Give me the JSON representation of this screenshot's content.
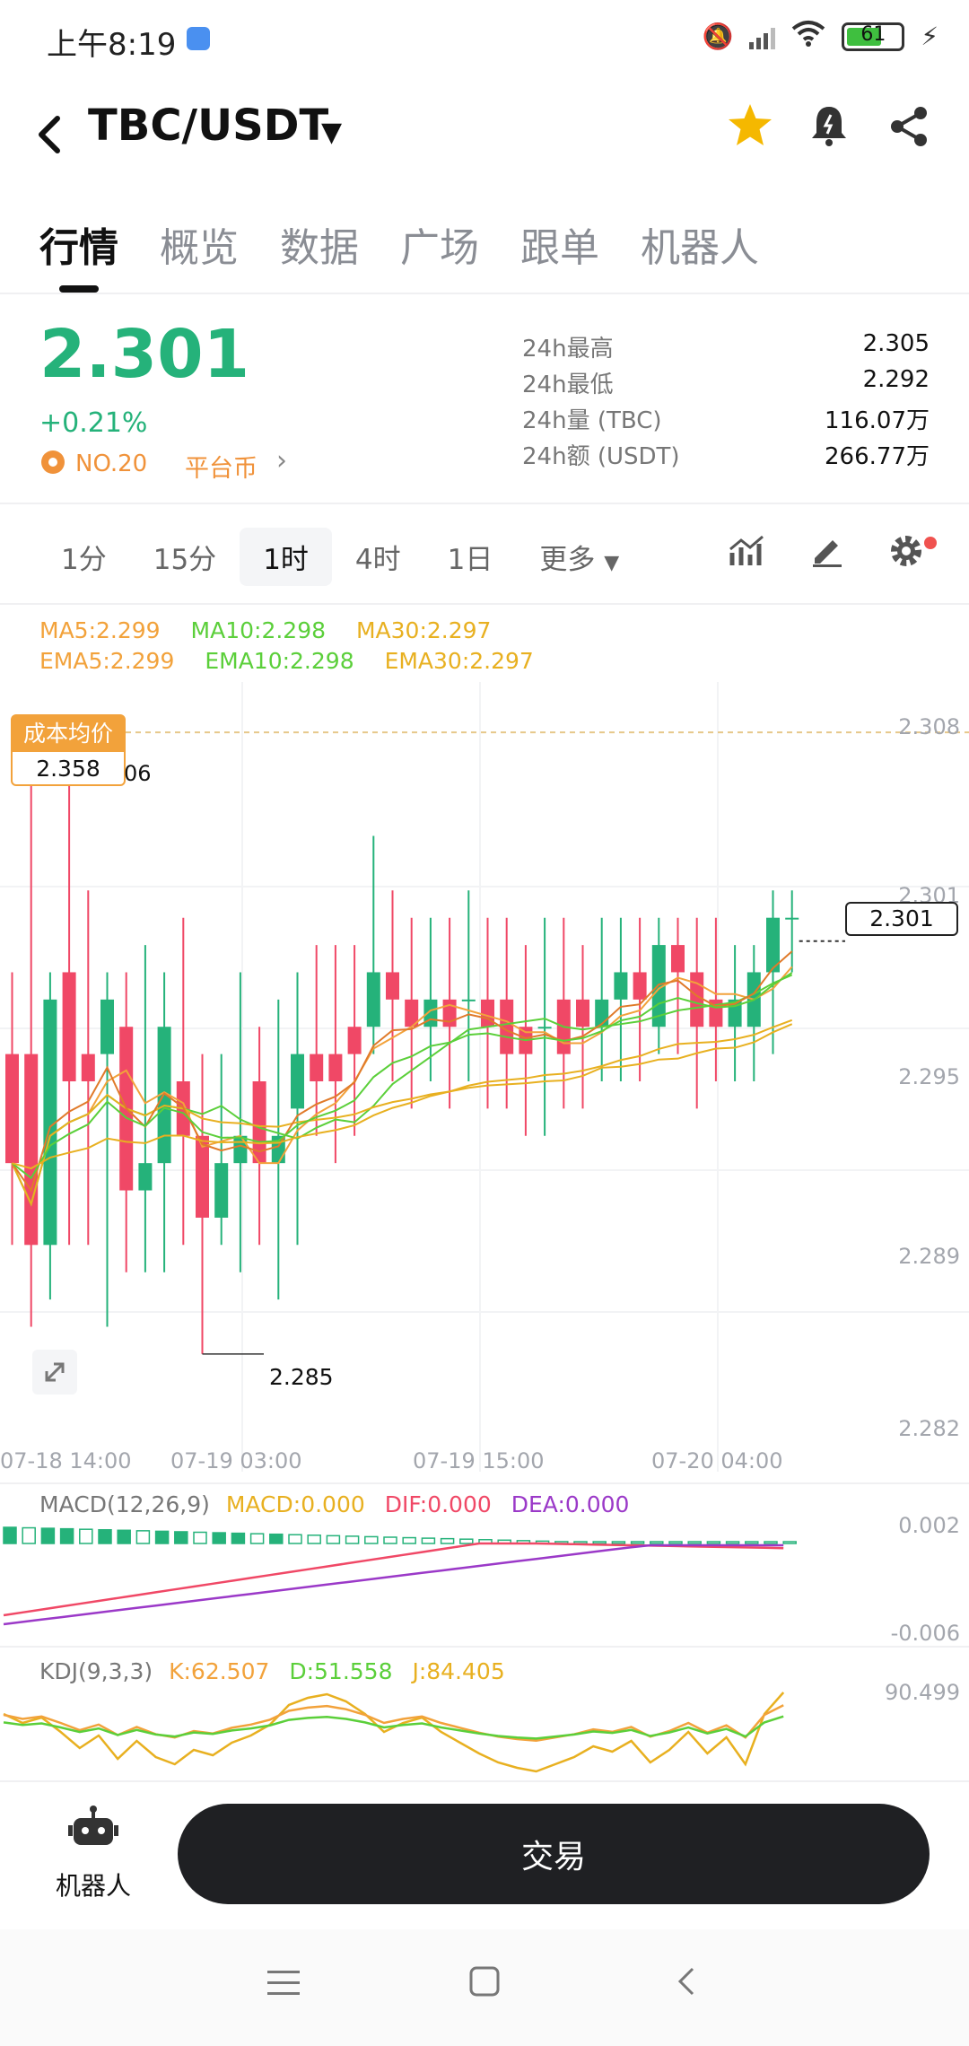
{
  "status_bar": {
    "time": "上午8:19",
    "battery": "61"
  },
  "header": {
    "pair": "TBC/USDT"
  },
  "tabs": [
    "行情",
    "概览",
    "数据",
    "广场",
    "跟单",
    "机器人"
  ],
  "price": {
    "last": "2.301",
    "change": "+0.21%",
    "rank": "NO.20",
    "platform_label": "平台币",
    "color_up": "#25b27a",
    "color_down": "#f04866"
  },
  "stats": [
    {
      "label": "24h最高",
      "value": "2.305"
    },
    {
      "label": "24h最低",
      "value": "2.292"
    },
    {
      "label": "24h量 (TBC)",
      "value": "116.07万"
    },
    {
      "label": "24h额 (USDT)",
      "value": "266.77万"
    }
  ],
  "intervals": [
    "1分",
    "15分",
    "1时",
    "4时",
    "1日"
  ],
  "interval_active": "1时",
  "more_label": "更多",
  "ma_legend": [
    {
      "text": "MA5:2.299",
      "color": "#f2a23b"
    },
    {
      "text": "MA10:2.298",
      "color": "#5bcf3a"
    },
    {
      "text": "MA30:2.297",
      "color": "#e8b020"
    }
  ],
  "ema_legend": [
    {
      "text": "EMA5:2.299",
      "color": "#f2a23b"
    },
    {
      "text": "EMA10:2.298",
      "color": "#5bcf3a"
    },
    {
      "text": "EMA30:2.297",
      "color": "#e8b020"
    }
  ],
  "cost_badge": {
    "label": "成本均价",
    "value": "2.358"
  },
  "cost_side_text": "06",
  "current_price_tag": "2.301",
  "low_marker": "2.285",
  "chart_data": [
    {
      "type": "candlestick",
      "title": "",
      "ylim": [
        2.282,
        2.308
      ],
      "y_ticks": [
        "2.308",
        "2.301",
        "2.295",
        "2.289",
        "2.282"
      ],
      "x_ticks": [
        "07-18 14:00",
        "07-19 03:00",
        "07-19 15:00",
        "07-20 04:00"
      ],
      "candles": [
        {
          "o": 2.296,
          "c": 2.292,
          "h": 2.299,
          "l": 2.289
        },
        {
          "o": 2.296,
          "c": 2.289,
          "h": 2.306,
          "l": 2.286
        },
        {
          "o": 2.289,
          "c": 2.298,
          "h": 2.299,
          "l": 2.287
        },
        {
          "o": 2.299,
          "c": 2.295,
          "h": 2.306,
          "l": 2.289
        },
        {
          "o": 2.296,
          "c": 2.295,
          "h": 2.302,
          "l": 2.289
        },
        {
          "o": 2.296,
          "c": 2.298,
          "h": 2.299,
          "l": 2.286
        },
        {
          "o": 2.297,
          "c": 2.291,
          "h": 2.299,
          "l": 2.288
        },
        {
          "o": 2.291,
          "c": 2.292,
          "h": 2.3,
          "l": 2.288
        },
        {
          "o": 2.292,
          "c": 2.297,
          "h": 2.299,
          "l": 2.288
        },
        {
          "o": 2.295,
          "c": 2.293,
          "h": 2.301,
          "l": 2.289
        },
        {
          "o": 2.293,
          "c": 2.29,
          "h": 2.296,
          "l": 2.285
        },
        {
          "o": 2.29,
          "c": 2.292,
          "h": 2.296,
          "l": 2.289
        },
        {
          "o": 2.292,
          "c": 2.293,
          "h": 2.299,
          "l": 2.288
        },
        {
          "o": 2.295,
          "c": 2.292,
          "h": 2.297,
          "l": 2.289
        },
        {
          "o": 2.292,
          "c": 2.293,
          "h": 2.298,
          "l": 2.287
        },
        {
          "o": 2.294,
          "c": 2.296,
          "h": 2.299,
          "l": 2.289
        },
        {
          "o": 2.296,
          "c": 2.295,
          "h": 2.3,
          "l": 2.293
        },
        {
          "o": 2.296,
          "c": 2.295,
          "h": 2.3,
          "l": 2.292
        },
        {
          "o": 2.297,
          "c": 2.296,
          "h": 2.3,
          "l": 2.293
        },
        {
          "o": 2.297,
          "c": 2.299,
          "h": 2.304,
          "l": 2.296
        },
        {
          "o": 2.299,
          "c": 2.298,
          "h": 2.302,
          "l": 2.295
        },
        {
          "o": 2.298,
          "c": 2.297,
          "h": 2.301,
          "l": 2.294
        },
        {
          "o": 2.297,
          "c": 2.298,
          "h": 2.301,
          "l": 2.295
        },
        {
          "o": 2.298,
          "c": 2.297,
          "h": 2.301,
          "l": 2.294
        },
        {
          "o": 2.298,
          "c": 2.298,
          "h": 2.302,
          "l": 2.295
        },
        {
          "o": 2.298,
          "c": 2.297,
          "h": 2.301,
          "l": 2.294
        },
        {
          "o": 2.298,
          "c": 2.296,
          "h": 2.301,
          "l": 2.294
        },
        {
          "o": 2.297,
          "c": 2.296,
          "h": 2.3,
          "l": 2.293
        },
        {
          "o": 2.297,
          "c": 2.297,
          "h": 2.301,
          "l": 2.293
        },
        {
          "o": 2.298,
          "c": 2.296,
          "h": 2.301,
          "l": 2.294
        },
        {
          "o": 2.298,
          "c": 2.297,
          "h": 2.3,
          "l": 2.294
        },
        {
          "o": 2.297,
          "c": 2.298,
          "h": 2.301,
          "l": 2.295
        },
        {
          "o": 2.298,
          "c": 2.299,
          "h": 2.301,
          "l": 2.295
        },
        {
          "o": 2.299,
          "c": 2.298,
          "h": 2.301,
          "l": 2.295
        },
        {
          "o": 2.297,
          "c": 2.3,
          "h": 2.301,
          "l": 2.296
        },
        {
          "o": 2.3,
          "c": 2.299,
          "h": 2.301,
          "l": 2.296
        },
        {
          "o": 2.299,
          "c": 2.297,
          "h": 2.301,
          "l": 2.294
        },
        {
          "o": 2.298,
          "c": 2.297,
          "h": 2.301,
          "l": 2.295
        },
        {
          "o": 2.297,
          "c": 2.298,
          "h": 2.3,
          "l": 2.295
        },
        {
          "o": 2.297,
          "c": 2.299,
          "h": 2.3,
          "l": 2.295
        },
        {
          "o": 2.299,
          "c": 2.301,
          "h": 2.302,
          "l": 2.296
        },
        {
          "o": 2.301,
          "c": 2.301,
          "h": 2.302,
          "l": 2.299
        }
      ]
    },
    {
      "type": "bar",
      "legend_prefix": "MACD(12,26,9)",
      "legend": [
        {
          "text": "MACD:0.000",
          "color": "#e8b020"
        },
        {
          "text": "DIF:0.000",
          "color": "#f04866"
        },
        {
          "text": "DEA:0.000",
          "color": "#9b39c8"
        }
      ],
      "y_ticks": [
        "0.002",
        "-0.006"
      ]
    },
    {
      "type": "line",
      "legend_prefix": "KDJ(9,3,3)",
      "legend": [
        {
          "text": "K:62.507",
          "color": "#f2a23b"
        },
        {
          "text": "D:51.558",
          "color": "#5bcf3a"
        },
        {
          "text": "J:84.405",
          "color": "#e8b020"
        }
      ],
      "y_ticks": [
        "90.499"
      ]
    }
  ],
  "bottom": {
    "robot_label": "机器人",
    "trade_label": "交易"
  }
}
